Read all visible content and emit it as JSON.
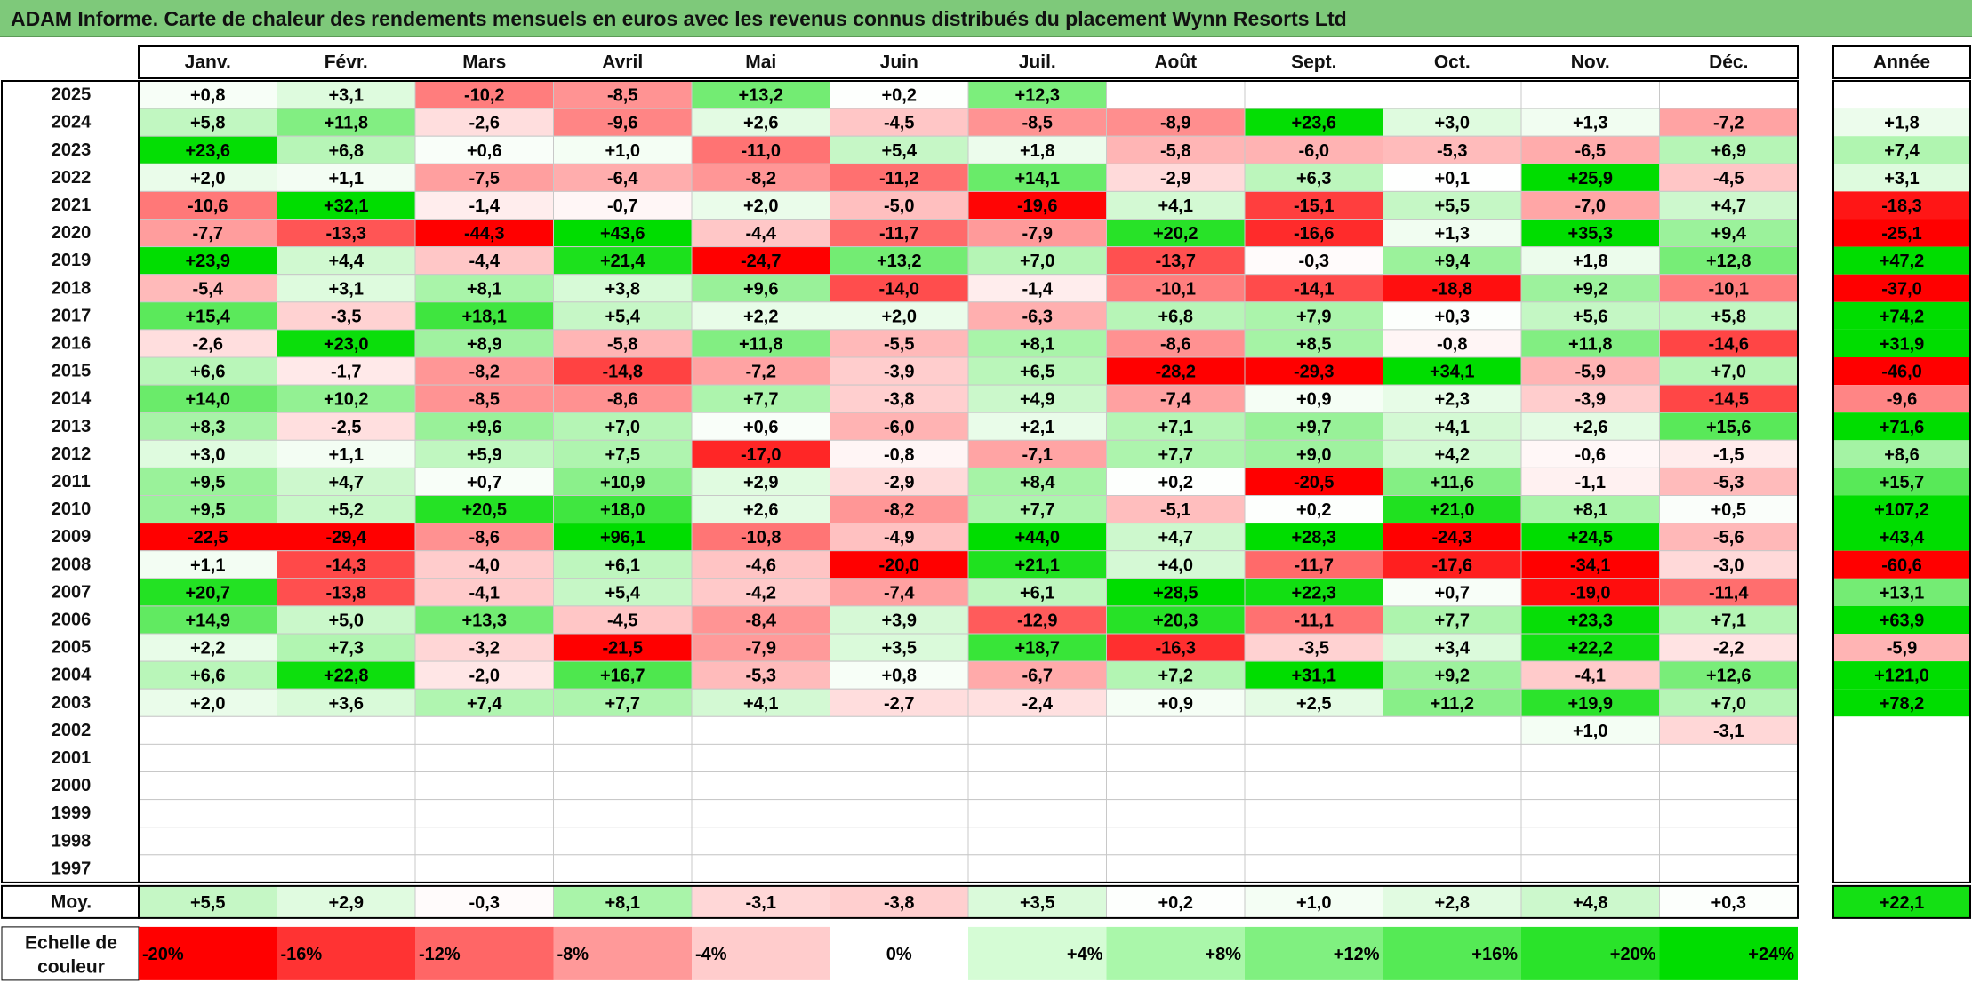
{
  "title": "ADAM Informe. Carte de chaleur des rendements mensuels en euros avec les revenus connus distribués du placement Wynn Resorts Ltd",
  "chart_data": {
    "type": "heatmap",
    "columns": [
      "Janv.",
      "Févr.",
      "Mars",
      "Avril",
      "Mai",
      "Juin",
      "Juil.",
      "Août",
      "Sept.",
      "Oct.",
      "Nov.",
      "Déc."
    ],
    "year_column_label": "Année",
    "average_row_label": "Moy.",
    "scale_label": [
      "Echelle de",
      "couleur"
    ],
    "rows": [
      {
        "year": "2025",
        "values": [
          0.8,
          3.1,
          -10.2,
          -8.5,
          13.2,
          0.2,
          12.3,
          null,
          null,
          null,
          null,
          null
        ],
        "annual": null
      },
      {
        "year": "2024",
        "values": [
          5.8,
          11.8,
          -2.6,
          -9.6,
          2.6,
          -4.5,
          -8.5,
          -8.9,
          23.6,
          3.0,
          1.3,
          -7.2
        ],
        "annual": 1.8
      },
      {
        "year": "2023",
        "values": [
          23.6,
          6.8,
          0.6,
          1.0,
          -11.0,
          5.4,
          1.8,
          -5.8,
          -6.0,
          -5.3,
          -6.5,
          6.9
        ],
        "annual": 7.4
      },
      {
        "year": "2022",
        "values": [
          2.0,
          1.1,
          -7.5,
          -6.4,
          -8.2,
          -11.2,
          14.1,
          -2.9,
          6.3,
          0.1,
          25.9,
          -4.5
        ],
        "annual": 3.1
      },
      {
        "year": "2021",
        "values": [
          -10.6,
          32.1,
          -1.4,
          -0.7,
          2.0,
          -5.0,
          -19.6,
          4.1,
          -15.1,
          5.5,
          -7.0,
          4.7
        ],
        "annual": -18.3
      },
      {
        "year": "2020",
        "values": [
          -7.7,
          -13.3,
          -44.3,
          43.6,
          -4.4,
          -11.7,
          -7.9,
          20.2,
          -16.6,
          1.3,
          35.3,
          9.4
        ],
        "annual": -25.1
      },
      {
        "year": "2019",
        "values": [
          23.9,
          4.4,
          -4.4,
          21.4,
          -24.7,
          13.2,
          7.0,
          -13.7,
          -0.3,
          9.4,
          1.8,
          12.8
        ],
        "annual": 47.2
      },
      {
        "year": "2018",
        "values": [
          -5.4,
          3.1,
          8.1,
          3.8,
          9.6,
          -14.0,
          -1.4,
          -10.1,
          -14.1,
          -18.8,
          9.2,
          -10.1
        ],
        "annual": -37.0
      },
      {
        "year": "2017",
        "values": [
          15.4,
          -3.5,
          18.1,
          5.4,
          2.2,
          2.0,
          -6.3,
          6.8,
          7.9,
          0.3,
          5.6,
          5.8
        ],
        "annual": 74.2
      },
      {
        "year": "2016",
        "values": [
          -2.6,
          23.0,
          8.9,
          -5.8,
          11.8,
          -5.5,
          8.1,
          -8.6,
          8.5,
          -0.8,
          11.8,
          -14.6
        ],
        "annual": 31.9
      },
      {
        "year": "2015",
        "values": [
          6.6,
          -1.7,
          -8.2,
          -14.8,
          -7.2,
          -3.9,
          6.5,
          -28.2,
          -29.3,
          34.1,
          -5.9,
          7.0
        ],
        "annual": -46.0
      },
      {
        "year": "2014",
        "values": [
          14.0,
          10.2,
          -8.5,
          -8.6,
          7.7,
          -3.8,
          4.9,
          -7.4,
          0.9,
          2.3,
          -3.9,
          -14.5
        ],
        "annual": -9.6
      },
      {
        "year": "2013",
        "values": [
          8.3,
          -2.5,
          9.6,
          7.0,
          0.6,
          -6.0,
          2.1,
          7.1,
          9.7,
          4.1,
          2.6,
          15.6
        ],
        "annual": 71.6
      },
      {
        "year": "2012",
        "values": [
          3.0,
          1.1,
          5.9,
          7.5,
          -17.0,
          -0.8,
          -7.1,
          7.7,
          9.0,
          4.2,
          -0.6,
          -1.5
        ],
        "annual": 8.6
      },
      {
        "year": "2011",
        "values": [
          9.5,
          4.7,
          0.7,
          10.9,
          2.9,
          -2.9,
          8.4,
          0.2,
          -20.5,
          11.6,
          -1.1,
          -5.3
        ],
        "annual": 15.7
      },
      {
        "year": "2010",
        "values": [
          9.5,
          5.2,
          20.5,
          18.0,
          2.6,
          -8.2,
          7.7,
          -5.1,
          0.2,
          21.0,
          8.1,
          0.5
        ],
        "annual": 107.2
      },
      {
        "year": "2009",
        "values": [
          -22.5,
          -29.4,
          -8.6,
          96.1,
          -10.8,
          -4.9,
          44.0,
          4.7,
          28.3,
          -24.3,
          24.5,
          -5.6
        ],
        "annual": 43.4
      },
      {
        "year": "2008",
        "values": [
          1.1,
          -14.3,
          -4.0,
          6.1,
          -4.6,
          -20.0,
          21.1,
          4.0,
          -11.7,
          -17.6,
          -34.1,
          -3.0
        ],
        "annual": -60.6
      },
      {
        "year": "2007",
        "values": [
          20.7,
          -13.8,
          -4.1,
          5.4,
          -4.2,
          -7.4,
          6.1,
          28.5,
          22.3,
          0.7,
          -19.0,
          -11.4
        ],
        "annual": 13.1
      },
      {
        "year": "2006",
        "values": [
          14.9,
          5.0,
          13.3,
          -4.5,
          -8.4,
          3.9,
          -12.9,
          20.3,
          -11.1,
          7.7,
          23.3,
          7.1
        ],
        "annual": 63.9
      },
      {
        "year": "2005",
        "values": [
          2.2,
          7.3,
          -3.2,
          -21.5,
          -7.9,
          3.5,
          18.7,
          -16.3,
          -3.5,
          3.4,
          22.2,
          -2.2
        ],
        "annual": -5.9
      },
      {
        "year": "2004",
        "values": [
          6.6,
          22.8,
          -2.0,
          16.7,
          -5.3,
          0.8,
          -6.7,
          7.2,
          31.1,
          9.2,
          -4.1,
          12.6
        ],
        "annual": 121.0
      },
      {
        "year": "2003",
        "values": [
          2.0,
          3.6,
          7.4,
          7.7,
          4.1,
          -2.7,
          -2.4,
          0.9,
          2.5,
          11.2,
          19.9,
          7.0
        ],
        "annual": 78.2
      },
      {
        "year": "2002",
        "values": [
          null,
          null,
          null,
          null,
          null,
          null,
          null,
          null,
          null,
          null,
          1.0,
          -3.1
        ],
        "annual": null
      },
      {
        "year": "2001",
        "values": [
          null,
          null,
          null,
          null,
          null,
          null,
          null,
          null,
          null,
          null,
          null,
          null
        ],
        "annual": null
      },
      {
        "year": "2000",
        "values": [
          null,
          null,
          null,
          null,
          null,
          null,
          null,
          null,
          null,
          null,
          null,
          null
        ],
        "annual": null
      },
      {
        "year": "1999",
        "values": [
          null,
          null,
          null,
          null,
          null,
          null,
          null,
          null,
          null,
          null,
          null,
          null
        ],
        "annual": null
      },
      {
        "year": "1998",
        "values": [
          null,
          null,
          null,
          null,
          null,
          null,
          null,
          null,
          null,
          null,
          null,
          null
        ],
        "annual": null
      },
      {
        "year": "1997",
        "values": [
          null,
          null,
          null,
          null,
          null,
          null,
          null,
          null,
          null,
          null,
          null,
          null
        ],
        "annual": null
      }
    ],
    "averages": [
      5.5,
      2.9,
      -0.3,
      8.1,
      -3.1,
      -3.8,
      3.5,
      0.2,
      1.0,
      2.8,
      4.8,
      0.3
    ],
    "average_annual": 22.1,
    "color_scale": [
      {
        "label": "-20%",
        "color": "#ff0000"
      },
      {
        "label": "-16%",
        "color": "#ff3333"
      },
      {
        "label": "-12%",
        "color": "#ff6666"
      },
      {
        "label": "-8%",
        "color": "#ff9999"
      },
      {
        "label": "-4%",
        "color": "#ffcccc"
      },
      {
        "label": "0%",
        "color": "#ffffff"
      },
      {
        "label": "+4%",
        "color": "#d5fcd5"
      },
      {
        "label": "+8%",
        "color": "#aaf7aa"
      },
      {
        "label": "+12%",
        "color": "#80f080"
      },
      {
        "label": "+16%",
        "color": "#55ea55"
      },
      {
        "label": "+20%",
        "color": "#2ae32a"
      },
      {
        "label": "+24%",
        "color": "#00dd00"
      }
    ]
  }
}
